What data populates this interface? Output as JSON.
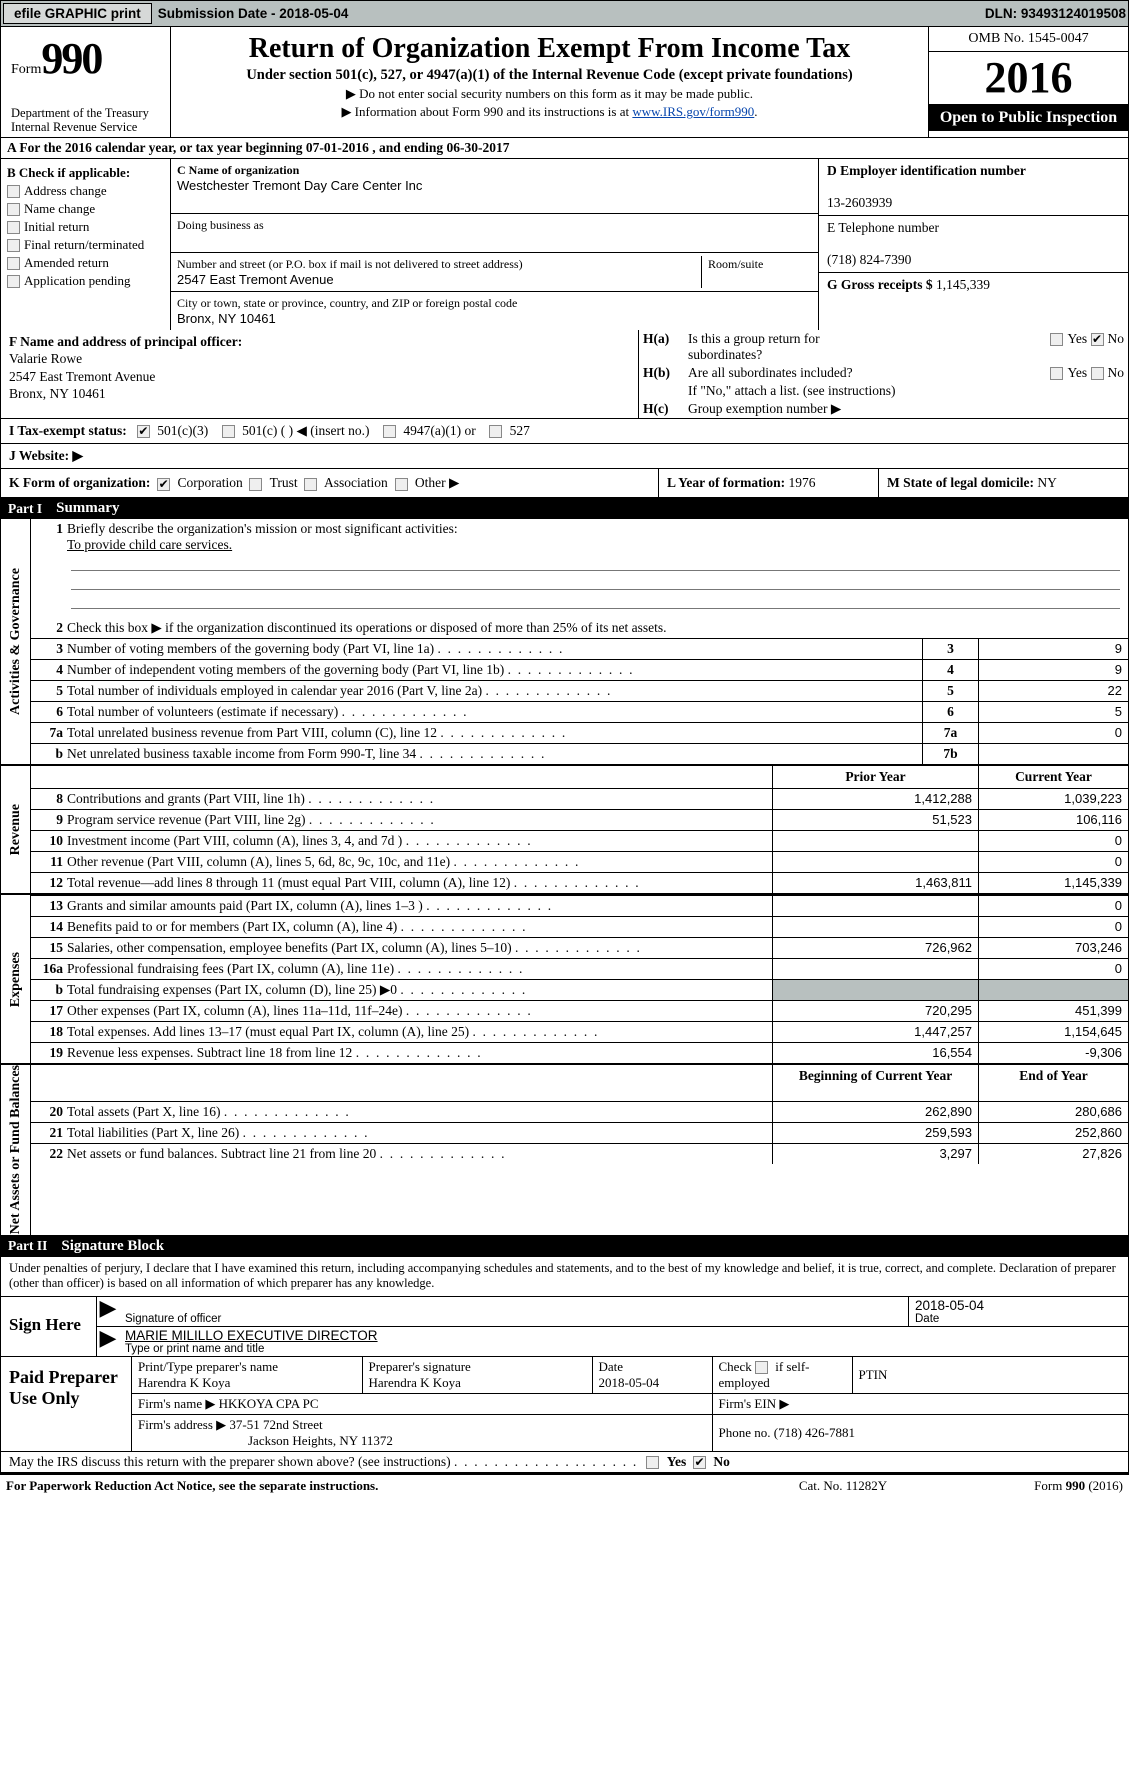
{
  "topbar": {
    "efile": "efile GRAPHIC print",
    "subLabel": "Submission Date - ",
    "subDate": "2018-05-04",
    "dln": "DLN: 93493124019508"
  },
  "header": {
    "formWord": "Form",
    "formNum": "990",
    "dept1": "Department of the Treasury",
    "dept2": "Internal Revenue Service",
    "title": "Return of Organization Exempt From Income Tax",
    "sub": "Under section 501(c), 527, or 4947(a)(1) of the Internal Revenue Code (except private foundations)",
    "l1": "▶ Do not enter social security numbers on this form as it may be made public.",
    "l2a": "▶ Information about Form 990 and its instructions is at ",
    "l2link": "www.IRS.gov/form990",
    "omb": "OMB No. 1545-0047",
    "year": "2016",
    "open": "Open to Public Inspection"
  },
  "A": {
    "text": "A  For the 2016 calendar year, or tax year beginning 07-01-2016   , and ending 06-30-2017"
  },
  "B": {
    "label": "B Check if applicable:",
    "items": [
      "Address change",
      "Name change",
      "Initial return",
      "Final return/terminated",
      "Amended return",
      "Application pending"
    ]
  },
  "C": {
    "nameLabel": "C Name of organization",
    "name": "Westchester Tremont Day Care Center Inc",
    "dbaLabel": "Doing business as",
    "dba": "",
    "addrLabel": "Number and street (or P.O. box if mail is not delivered to street address)",
    "roomLabel": "Room/suite",
    "addr": "2547 East Tremont Avenue",
    "cityLabel": "City or town, state or province, country, and ZIP or foreign postal code",
    "city": "Bronx, NY  10461"
  },
  "D": {
    "label": "D Employer identification number",
    "val": "13-2603939"
  },
  "E": {
    "label": "E Telephone number",
    "val": "(718) 824-7390"
  },
  "G": {
    "label": "G Gross receipts $ ",
    "val": "1,145,339"
  },
  "F": {
    "label": "F  Name and address of principal officer:",
    "name": "Valarie Rowe",
    "addr": "2547 East Tremont Avenue",
    "city": "Bronx, NY  10461"
  },
  "H": {
    "a": "Is this a group return for",
    "a2": "subordinates?",
    "b": "Are all subordinates included?",
    "ifno": "If \"No,\" attach a list. (see instructions)",
    "c": "Group exemption number ▶"
  },
  "I": {
    "label": "I  Tax-exempt status:",
    "opts": [
      "501(c)(3)",
      "501(c) (   ) ◀ (insert no.)",
      "4947(a)(1) or",
      "527"
    ]
  },
  "J": {
    "label": "J  Website: ▶"
  },
  "K": {
    "label": "K Form of organization:",
    "opts": [
      "Corporation",
      "Trust",
      "Association",
      "Other ▶"
    ]
  },
  "L": {
    "label": "L Year of formation: ",
    "val": "1976"
  },
  "M": {
    "label": "M State of legal domicile: ",
    "val": "NY"
  },
  "part1": {
    "num": "Part I",
    "title": "Summary"
  },
  "sideLabels": {
    "ag": "Activities & Governance",
    "rev": "Revenue",
    "exp": "Expenses",
    "net": "Net Assets or\nFund Balances"
  },
  "p1": {
    "l1": "Briefly describe the organization's mission or most significant activities:",
    "l1v": "To provide child care services.",
    "l2": "Check this box ▶        if the organization discontinued its operations or disposed of more than 25% of its net assets.",
    "rows": [
      {
        "n": "3",
        "t": "Number of voting members of the governing body (Part VI, line 1a)",
        "b": "3",
        "v": "9"
      },
      {
        "n": "4",
        "t": "Number of independent voting members of the governing body (Part VI, line 1b)",
        "b": "4",
        "v": "9"
      },
      {
        "n": "5",
        "t": "Total number of individuals employed in calendar year 2016 (Part V, line 2a)",
        "b": "5",
        "v": "22"
      },
      {
        "n": "6",
        "t": "Total number of volunteers (estimate if necessary)",
        "b": "6",
        "v": "5"
      },
      {
        "n": "7a",
        "t": "Total unrelated business revenue from Part VIII, column (C), line 12",
        "b": "7a",
        "v": "0"
      },
      {
        "n": "b",
        "t": "Net unrelated business taxable income from Form 990-T, line 34",
        "b": "7b",
        "v": ""
      }
    ],
    "hdrPY": "Prior Year",
    "hdrCY": "Current Year",
    "rev": [
      {
        "n": "8",
        "t": "Contributions and grants (Part VIII, line 1h)",
        "p": "1,412,288",
        "c": "1,039,223"
      },
      {
        "n": "9",
        "t": "Program service revenue (Part VIII, line 2g)",
        "p": "51,523",
        "c": "106,116"
      },
      {
        "n": "10",
        "t": "Investment income (Part VIII, column (A), lines 3, 4, and 7d )",
        "p": "",
        "c": "0"
      },
      {
        "n": "11",
        "t": "Other revenue (Part VIII, column (A), lines 5, 6d, 8c, 9c, 10c, and 11e)",
        "p": "",
        "c": "0"
      },
      {
        "n": "12",
        "t": "Total revenue—add lines 8 through 11 (must equal Part VIII, column (A), line 12)",
        "p": "1,463,811",
        "c": "1,145,339"
      }
    ],
    "exp": [
      {
        "n": "13",
        "t": "Grants and similar amounts paid (Part IX, column (A), lines 1–3 )",
        "p": "",
        "c": "0"
      },
      {
        "n": "14",
        "t": "Benefits paid to or for members (Part IX, column (A), line 4)",
        "p": "",
        "c": "0"
      },
      {
        "n": "15",
        "t": "Salaries, other compensation, employee benefits (Part IX, column (A), lines 5–10)",
        "p": "726,962",
        "c": "703,246"
      },
      {
        "n": "16a",
        "t": "Professional fundraising fees (Part IX, column (A), line 11e)",
        "p": "",
        "c": "0"
      },
      {
        "n": "b",
        "t": "Total fundraising expenses (Part IX, column (D), line 25) ▶0",
        "p": "shade",
        "c": "shade"
      },
      {
        "n": "17",
        "t": "Other expenses (Part IX, column (A), lines 11a–11d, 11f–24e)",
        "p": "720,295",
        "c": "451,399"
      },
      {
        "n": "18",
        "t": "Total expenses. Add lines 13–17 (must equal Part IX, column (A), line 25)",
        "p": "1,447,257",
        "c": "1,154,645"
      },
      {
        "n": "19",
        "t": "Revenue less expenses. Subtract line 18 from line 12",
        "p": "16,554",
        "c": "-9,306"
      }
    ],
    "hdrBY": "Beginning of Current Year",
    "hdrEY": "End of Year",
    "net": [
      {
        "n": "20",
        "t": "Total assets (Part X, line 16)",
        "p": "262,890",
        "c": "280,686"
      },
      {
        "n": "21",
        "t": "Total liabilities (Part X, line 26)",
        "p": "259,593",
        "c": "252,860"
      },
      {
        "n": "22",
        "t": "Net assets or fund balances. Subtract line 21 from line 20",
        "p": "3,297",
        "c": "27,826"
      }
    ]
  },
  "part2": {
    "num": "Part II",
    "title": "Signature Block"
  },
  "sigtext": "Under penalties of perjury, I declare that I have examined this return, including accompanying schedules and statements, and to the best of my knowledge and belief, it is true, correct, and complete. Declaration of preparer (other than officer) is based on all information of which preparer has any knowledge.",
  "sign": {
    "here": "Sign Here",
    "sigLabel": "Signature of officer",
    "dateLabel": "Date",
    "date": "2018-05-04",
    "name": "MARIE MILILLO  EXECUTIVE DIRECTOR",
    "nameLabel": "Type or print name and title"
  },
  "prep": {
    "label": "Paid Preparer Use Only",
    "r1": {
      "a": "Print/Type preparer's name",
      "av": "Harendra K Koya",
      "b": "Preparer's signature",
      "bv": "Harendra K Koya",
      "c": "Date",
      "cv": "2018-05-04",
      "d": "Check        if self-employed",
      "e": "PTIN"
    },
    "r2": {
      "a": "Firm's name      ▶ ",
      "av": "HKKOYA CPA PC",
      "b": "Firm's EIN ▶"
    },
    "r3": {
      "a": "Firm's address ▶ ",
      "av1": "37-51 72nd Street",
      "av2": "Jackson Heights, NY  11372",
      "b": "Phone no. (718) 426-7881"
    }
  },
  "discuss": "May the IRS discuss this return with the preparer shown above? (see instructions)",
  "footer": {
    "l": "For Paperwork Reduction Act Notice, see the separate instructions.",
    "m": "Cat. No. 11282Y",
    "r": "Form 990 (2016)"
  }
}
